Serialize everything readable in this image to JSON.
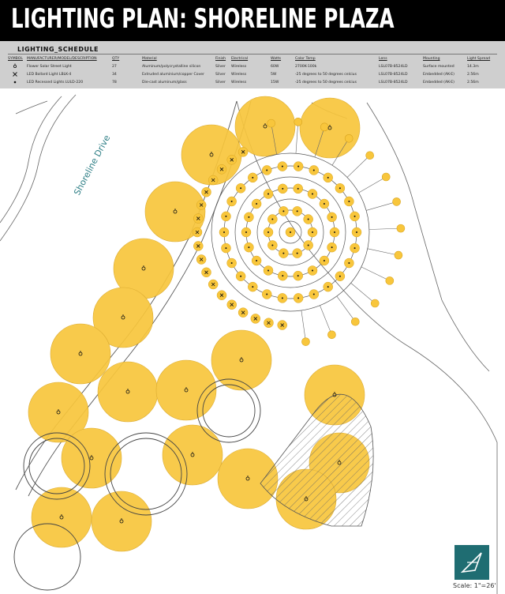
{
  "title": "LIGHTING PLAN: SHORELINE PLAZA",
  "schedule": {
    "title": "LIGHTING_SCHEDULE",
    "headers": [
      "SYMBOL",
      "MANUFACTURER/MODEL/DESCRIPTION",
      "QTY",
      "Material",
      "Finish",
      "Electrical",
      "Watts",
      "Color Temp",
      "Lens",
      "Mounting",
      "Light Spread"
    ],
    "rows": [
      {
        "description": "Flower Solar Street Light",
        "qty": "27",
        "material": "Aluminum/polycrystalline silicon",
        "finish": "Silver",
        "electrical": "Wireless",
        "watts": "60W",
        "color_temp": "2700K-100k",
        "lens": "LSL07B-8524LD",
        "mounting": "Surface mounted",
        "spread": "14.3m"
      },
      {
        "description": "LED Bollard Light LBLK-4",
        "qty": "34",
        "material": "Extruded aluminium/copper Cover",
        "finish": "Silver",
        "electrical": "Wireless",
        "watts": "5W",
        "color_temp": "-25 degrees to 50 degrees celcius",
        "lens": "LSL07B-8524LD",
        "mounting": "Embedded (AK-E)",
        "spread": "2.56m"
      },
      {
        "description": "LED Recessed Lights LULD-220",
        "qty": "78",
        "material": "Die-cast aluminum/glass",
        "finish": "Silver",
        "electrical": "Wireless",
        "watts": "15W",
        "color_temp": "-25 degrees to 50 degrees celcius",
        "lens": "LSL07B-8524LD",
        "mounting": "Embedded (AK-E)",
        "spread": "2.56m"
      }
    ]
  },
  "plan": {
    "street_label": "Shoreline Drive",
    "colors": {
      "light_fill": "#f8c63c",
      "light_stroke": "#d9a520",
      "line": "#555555",
      "fixture": "#111111"
    }
  },
  "scale_label": "Scale: 1\"=26'"
}
